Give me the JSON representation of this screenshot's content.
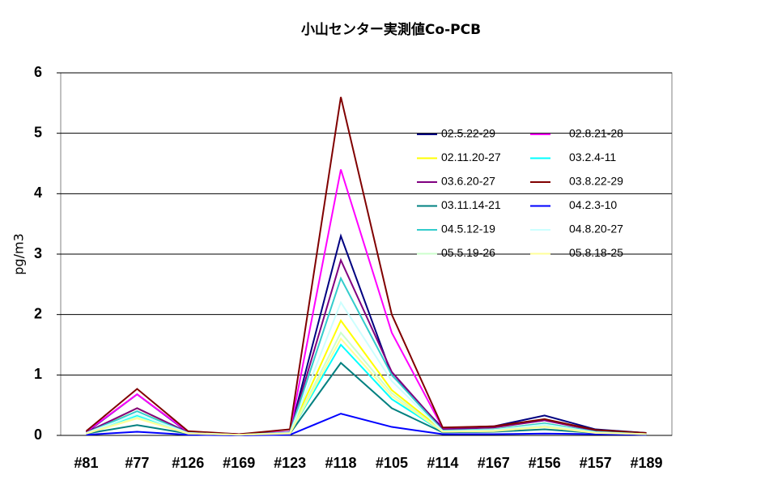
{
  "chart_data": {
    "type": "line",
    "title": "小山センター実測値Co-PCB",
    "y_label": "pg/m3",
    "categories": [
      "#81",
      "#77",
      "#126",
      "#169",
      "#123",
      "#118",
      "#105",
      "#114",
      "#167",
      "#156",
      "#157",
      "#189"
    ],
    "ylim": [
      0,
      6
    ],
    "yticks": [
      0,
      1,
      2,
      3,
      4,
      5,
      6
    ],
    "grid": true,
    "series": [
      {
        "name": "02.5.22-29",
        "color": "#000080",
        "values": [
          0.05,
          0.68,
          0.05,
          0.02,
          0.05,
          3.3,
          1.0,
          0.12,
          0.15,
          0.33,
          0.1,
          0.04
        ]
      },
      {
        "name": "02.8.21-28",
        "color": "#ff00ff",
        "values": [
          0.06,
          0.68,
          0.06,
          0.02,
          0.06,
          4.4,
          1.7,
          0.12,
          0.15,
          0.25,
          0.08,
          0.03
        ]
      },
      {
        "name": "02.11.20-27",
        "color": "#ffff00",
        "values": [
          0.04,
          0.45,
          0.04,
          0.01,
          0.05,
          1.9,
          0.75,
          0.08,
          0.1,
          0.2,
          0.06,
          0.02
        ]
      },
      {
        "name": "03.2.4-11",
        "color": "#00ffff",
        "values": [
          0.03,
          0.33,
          0.03,
          0.01,
          0.04,
          1.5,
          0.6,
          0.06,
          0.08,
          0.15,
          0.05,
          0.02
        ]
      },
      {
        "name": "03.6.20-27",
        "color": "#800080",
        "values": [
          0.05,
          0.45,
          0.05,
          0.02,
          0.05,
          2.9,
          1.05,
          0.1,
          0.13,
          0.25,
          0.08,
          0.03
        ]
      },
      {
        "name": "03.8.22-29",
        "color": "#800000",
        "values": [
          0.07,
          0.77,
          0.07,
          0.02,
          0.1,
          5.6,
          2.0,
          0.13,
          0.15,
          0.27,
          0.09,
          0.04
        ]
      },
      {
        "name": "03.11.14-21",
        "color": "#008080",
        "values": [
          0.03,
          0.17,
          0.03,
          0.01,
          0.03,
          1.2,
          0.45,
          0.05,
          0.06,
          0.1,
          0.04,
          0.01
        ]
      },
      {
        "name": "04.2.3-10",
        "color": "#0000ff",
        "values": [
          0.01,
          0.06,
          0.01,
          0.0,
          0.01,
          0.36,
          0.14,
          0.02,
          0.02,
          0.03,
          0.02,
          0.01
        ]
      },
      {
        "name": "04.5.12-19",
        "color": "#33cccc",
        "values": [
          0.04,
          0.4,
          0.04,
          0.01,
          0.05,
          2.6,
          1.0,
          0.08,
          0.1,
          0.2,
          0.06,
          0.02
        ]
      },
      {
        "name": "04.8.20-27",
        "color": "#ccffff",
        "values": [
          0.04,
          0.35,
          0.04,
          0.01,
          0.04,
          2.2,
          0.9,
          0.07,
          0.09,
          0.18,
          0.05,
          0.02
        ]
      },
      {
        "name": "05.5.19-26",
        "color": "#ccffcc",
        "values": [
          0.03,
          0.3,
          0.03,
          0.01,
          0.04,
          1.7,
          0.7,
          0.06,
          0.08,
          0.15,
          0.05,
          0.02
        ]
      },
      {
        "name": "05.8.18-25",
        "color": "#ffff99",
        "values": [
          0.03,
          0.28,
          0.03,
          0.01,
          0.03,
          1.6,
          0.65,
          0.06,
          0.07,
          0.14,
          0.04,
          0.02
        ]
      }
    ]
  }
}
